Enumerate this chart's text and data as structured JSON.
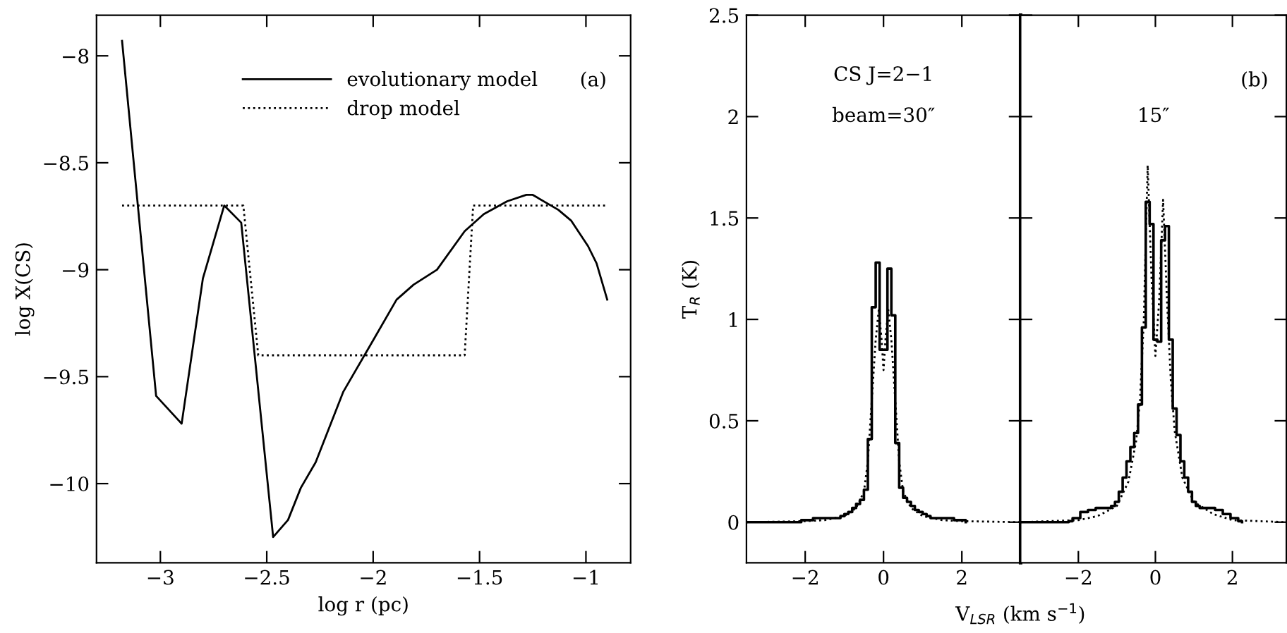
{
  "chart_data": [
    {
      "type": "line",
      "xlabel": "log r (pc)",
      "ylabel": "log X(CS)",
      "xlim": [
        -3.3,
        -0.79
      ],
      "ylim": [
        -10.37,
        -7.81
      ],
      "xticks": [
        -3,
        -2.5,
        -2,
        -1.5,
        -1
      ],
      "yticks": [
        -10,
        -9.5,
        -9,
        -8.5,
        -8
      ],
      "legend": "top",
      "grid": false,
      "annotations": [
        "(a)"
      ],
      "series": [
        {
          "name": "evolutionary model",
          "color": "#000000",
          "line_style": "solid",
          "x": [
            -3.18,
            -3.02,
            -2.9,
            -2.8,
            -2.7,
            -2.62,
            -2.47,
            -2.4,
            -2.34,
            -2.27,
            -2.14,
            -2.0,
            -1.89,
            -1.81,
            -1.7,
            -1.57,
            -1.48,
            -1.37,
            -1.28,
            -1.25,
            -1.13,
            -1.07,
            -0.99,
            -0.95,
            -0.9
          ],
          "values": [
            -7.93,
            -9.59,
            -9.72,
            -9.04,
            -8.7,
            -8.78,
            -10.25,
            -10.17,
            -10.02,
            -9.9,
            -9.57,
            -9.33,
            -9.14,
            -9.07,
            -9.0,
            -8.82,
            -8.74,
            -8.68,
            -8.65,
            -8.65,
            -8.72,
            -8.77,
            -8.89,
            -8.97,
            -9.14
          ]
        },
        {
          "name": "drop model",
          "color": "#000000",
          "line_style": "dotted",
          "x": [
            -3.18,
            -2.61,
            -2.54,
            -1.57,
            -1.53,
            -0.9
          ],
          "values": [
            -8.7,
            -8.7,
            -9.4,
            -9.4,
            -8.7,
            -8.7
          ]
        }
      ]
    },
    {
      "type": "line",
      "xlabel": "V$_{LSR}$ (km s$^{−1}$)",
      "ylabel": "T$_{R}$ (K)",
      "xlim": [
        -3.5,
        3.5
      ],
      "ylim": [
        -0.2,
        2.5
      ],
      "xticks": [
        -2,
        0,
        2
      ],
      "yticks": [
        0,
        0.5,
        1,
        1.5,
        2,
        2.5
      ],
      "grid": false,
      "annotations": [
        "CS J=2−1",
        "beam=30″"
      ],
      "series": [
        {
          "type": "step",
          "color": "#000000",
          "line_style": "solid",
          "x": [
            -3.5,
            -2.1,
            -1.8,
            -1.2,
            -1.1,
            -1.0,
            -0.9,
            -0.8,
            -0.7,
            -0.6,
            -0.5,
            -0.4,
            -0.3,
            -0.2,
            -0.1,
            0.0,
            0.1,
            0.2,
            0.3,
            0.4,
            0.5,
            0.6,
            0.7,
            0.8,
            0.9,
            1.0,
            1.1,
            1.2,
            1.8,
            2.1
          ],
          "values": [
            0,
            0.01,
            0.02,
            0.02,
            0.03,
            0.04,
            0.05,
            0.07,
            0.09,
            0.11,
            0.16,
            0.41,
            1.06,
            1.28,
            0.85,
            0.85,
            1.25,
            1.02,
            0.39,
            0.17,
            0.12,
            0.1,
            0.08,
            0.06,
            0.05,
            0.04,
            0.03,
            0.02,
            0.01,
            0
          ]
        },
        {
          "type": "line",
          "color": "#000000",
          "line_style": "dotted",
          "x": [
            -3.5,
            -2,
            -1.5,
            -1,
            -0.7,
            -0.5,
            -0.4,
            -0.3,
            -0.2,
            -0.12,
            -0.05,
            0,
            0.05,
            0.12,
            0.2,
            0.3,
            0.4,
            0.5,
            0.7,
            1,
            1.5,
            2,
            3.5
          ],
          "values": [
            0,
            0.005,
            0.01,
            0.03,
            0.07,
            0.15,
            0.3,
            0.6,
            0.9,
            1.05,
            0.9,
            0.75,
            0.9,
            1.05,
            0.9,
            0.6,
            0.3,
            0.15,
            0.07,
            0.03,
            0.01,
            0.005,
            0
          ]
        }
      ]
    },
    {
      "type": "line",
      "xlim": [
        -3.5,
        3.4
      ],
      "ylim": [
        -0.2,
        2.5
      ],
      "xticks": [
        -2,
        0,
        2
      ],
      "yticks": [
        0,
        0.5,
        1,
        1.5,
        2,
        2.5
      ],
      "tick_labels": "x",
      "grid": false,
      "annotations": [
        "15″",
        "(b)"
      ],
      "series": [
        {
          "type": "step",
          "color": "#000000",
          "line_style": "solid",
          "x": [
            -3.5,
            -2.25,
            -2.15,
            -1.95,
            -1.75,
            -1.55,
            -1.15,
            -1.05,
            -0.95,
            -0.85,
            -0.75,
            -0.65,
            -0.55,
            -0.45,
            -0.35,
            -0.25,
            -0.15,
            -0.05,
            0.05,
            0.15,
            0.25,
            0.35,
            0.45,
            0.55,
            0.65,
            0.75,
            0.85,
            0.95,
            1.05,
            1.15,
            1.55,
            1.75,
            1.95,
            2.15,
            2.25
          ],
          "values": [
            0,
            0.005,
            0.02,
            0.05,
            0.06,
            0.07,
            0.08,
            0.1,
            0.15,
            0.22,
            0.3,
            0.37,
            0.44,
            0.58,
            0.96,
            1.58,
            1.47,
            0.9,
            0.89,
            1.39,
            1.46,
            0.9,
            0.56,
            0.43,
            0.3,
            0.22,
            0.15,
            0.1,
            0.08,
            0.07,
            0.06,
            0.04,
            0.02,
            0.005,
            0
          ]
        },
        {
          "type": "line",
          "color": "#000000",
          "line_style": "dotted",
          "x": [
            -3.5,
            -2,
            -1.5,
            -1,
            -0.7,
            -0.5,
            -0.4,
            -0.3,
            -0.25,
            -0.2,
            -0.1,
            0,
            0.1,
            0.2,
            0.3,
            0.4,
            0.5,
            0.7,
            1,
            1.5,
            2,
            3.4
          ],
          "values": [
            0,
            0.01,
            0.03,
            0.08,
            0.2,
            0.4,
            0.6,
            1.0,
            1.4,
            1.76,
            1.2,
            0.82,
            1.1,
            1.59,
            1.1,
            0.7,
            0.45,
            0.22,
            0.1,
            0.04,
            0.01,
            0
          ]
        }
      ]
    }
  ]
}
